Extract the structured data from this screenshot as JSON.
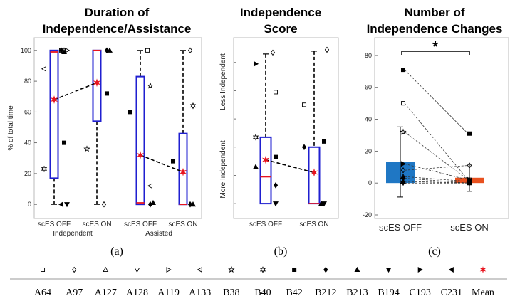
{
  "panels": {
    "a": {
      "title_line1": "Duration of",
      "title_line2": "Independence/Assistance",
      "ylabel": "% of total time",
      "caption": "(a)",
      "group_labels": [
        "Independent",
        "Assisted"
      ]
    },
    "b": {
      "title_line1": "Independence",
      "title_line2": "Score",
      "ylabel_top": "Less Independent",
      "ylabel_bottom": "More Independent",
      "caption": "(b)"
    },
    "c": {
      "title_line1": "Number of",
      "title_line2": "Independence Changes",
      "significance": "*",
      "caption": "(c)"
    }
  },
  "legend": {
    "items": [
      {
        "label": "A64",
        "marker": "square-open"
      },
      {
        "label": "A97",
        "marker": "diamond-open"
      },
      {
        "label": "A127",
        "marker": "triangle-up-open"
      },
      {
        "label": "A128",
        "marker": "triangle-down-open"
      },
      {
        "label": "A119",
        "marker": "triangle-right-open"
      },
      {
        "label": "A133",
        "marker": "triangle-left-open"
      },
      {
        "label": "B38",
        "marker": "pentagram-open"
      },
      {
        "label": "B40",
        "marker": "hexagram-open"
      },
      {
        "label": "B42",
        "marker": "square-filled"
      },
      {
        "label": "B212",
        "marker": "diamond-filled"
      },
      {
        "label": "B213",
        "marker": "triangle-up-filled"
      },
      {
        "label": "B194",
        "marker": "triangle-down-filled"
      },
      {
        "label": "C193",
        "marker": "triangle-right-filled"
      },
      {
        "label": "C231",
        "marker": "triangle-left-filled"
      },
      {
        "label": "Mean",
        "marker": "asterisk-red"
      }
    ]
  },
  "colors": {
    "box": "#1f1fd0",
    "median": "#e8141e",
    "mean": "#e8141e",
    "bar_off": "#1f77c4",
    "bar_on": "#e8511f"
  },
  "chart_data": [
    {
      "type": "box",
      "title": "Duration of Independence/Assistance",
      "ylabel": "% of total time",
      "ylim": [
        -5,
        105
      ],
      "yticks": [
        0,
        20,
        40,
        60,
        80,
        100
      ],
      "categories": [
        "scES OFF",
        "scES ON",
        "scES OFF",
        "scES ON"
      ],
      "groups": [
        "Independent",
        "Independent",
        "Assisted",
        "Assisted"
      ],
      "boxes": [
        {
          "q1": 17,
          "median": 99,
          "q3": 100,
          "whisker_low": 0,
          "whisker_high": 100,
          "mean": 68
        },
        {
          "q1": 54,
          "median": 100,
          "q3": 100,
          "whisker_low": 0,
          "whisker_high": 100,
          "mean": 79
        },
        {
          "q1": 0,
          "median": 1,
          "q3": 83,
          "whisker_low": 0,
          "whisker_high": 100,
          "mean": 32
        },
        {
          "q1": 0,
          "median": 0,
          "q3": 46,
          "whisker_low": 0,
          "whisker_high": 100,
          "mean": 21
        }
      ],
      "points": [
        {
          "box": 0,
          "subject": "A64",
          "value": 100
        },
        {
          "box": 0,
          "subject": "A97",
          "value": 100
        },
        {
          "box": 0,
          "subject": "A119",
          "value": 100
        },
        {
          "box": 0,
          "subject": "A133",
          "value": 88
        },
        {
          "box": 0,
          "subject": "B42",
          "value": 40
        },
        {
          "box": 0,
          "subject": "B40",
          "value": 23
        },
        {
          "box": 0,
          "subject": "B212",
          "value": 100
        },
        {
          "box": 0,
          "subject": "B213",
          "value": 99
        },
        {
          "box": 0,
          "subject": "B194",
          "value": 0
        },
        {
          "box": 0,
          "subject": "C231",
          "value": 0
        },
        {
          "box": 1,
          "subject": "B42",
          "value": 72
        },
        {
          "box": 1,
          "subject": "B38",
          "value": 36
        },
        {
          "box": 1,
          "subject": "A97",
          "value": 0
        },
        {
          "box": 1,
          "subject": "B212",
          "value": 100
        },
        {
          "box": 1,
          "subject": "B213",
          "value": 100
        },
        {
          "box": 2,
          "subject": "A64",
          "value": 100
        },
        {
          "box": 2,
          "subject": "B38",
          "value": 77
        },
        {
          "box": 2,
          "subject": "B42",
          "value": 60
        },
        {
          "box": 2,
          "subject": "A133",
          "value": 12
        },
        {
          "box": 2,
          "subject": "B212",
          "value": 0
        },
        {
          "box": 2,
          "subject": "B213",
          "value": 1
        },
        {
          "box": 3,
          "subject": "A97",
          "value": 100
        },
        {
          "box": 3,
          "subject": "B40",
          "value": 64
        },
        {
          "box": 3,
          "subject": "B42",
          "value": 28
        },
        {
          "box": 3,
          "subject": "B212",
          "value": 0
        },
        {
          "box": 3,
          "subject": "B213",
          "value": 0
        }
      ]
    },
    {
      "type": "box",
      "title": "Independence Score",
      "ylim": [
        -0.3,
        5.7
      ],
      "yticks": [
        0,
        1,
        2,
        3,
        4,
        5
      ],
      "categories": [
        "scES OFF",
        "scES ON"
      ],
      "boxes": [
        {
          "q1": 0,
          "median": 0.95,
          "q3": 2.35,
          "whisker_low": 0,
          "whisker_high": 5.3,
          "mean": 1.55
        },
        {
          "q1": 0,
          "median": 0,
          "q3": 2.0,
          "whisker_low": 0,
          "whisker_high": 5.4,
          "mean": 1.1
        }
      ],
      "points": [
        {
          "box": 0,
          "subject": "A97",
          "value": 5.35
        },
        {
          "box": 0,
          "subject": "C193",
          "value": 4.95
        },
        {
          "box": 0,
          "subject": "A64",
          "value": 3.95
        },
        {
          "box": 0,
          "subject": "B40",
          "value": 2.35
        },
        {
          "box": 0,
          "subject": "B42",
          "value": 1.65
        },
        {
          "box": 0,
          "subject": "B213",
          "value": 1.3
        },
        {
          "box": 0,
          "subject": "B212",
          "value": 0.65
        },
        {
          "box": 0,
          "subject": "B194",
          "value": 0
        },
        {
          "box": 1,
          "subject": "A97",
          "value": 5.45
        },
        {
          "box": 1,
          "subject": "A64",
          "value": 3.5
        },
        {
          "box": 1,
          "subject": "B42",
          "value": 2.2
        },
        {
          "box": 1,
          "subject": "B212",
          "value": 2.0
        },
        {
          "box": 1,
          "subject": "B213",
          "value": 0
        },
        {
          "box": 1,
          "subject": "B194",
          "value": 0
        }
      ]
    },
    {
      "type": "bar",
      "title": "Number of Independence Changes",
      "ylim": [
        -20,
        88
      ],
      "yticks": [
        -20,
        0,
        20,
        40,
        60,
        80
      ],
      "categories": [
        "scES OFF",
        "scES ON"
      ],
      "values": [
        13.2,
        3.3
      ],
      "errors": [
        22,
        8.5
      ],
      "pairs": [
        {
          "subject": "B42",
          "off": 71,
          "on": 31
        },
        {
          "subject": "A64",
          "off": 50,
          "on": 2
        },
        {
          "subject": "B38",
          "off": 32,
          "on": 2
        },
        {
          "subject": "A97",
          "off": 8,
          "on": 11
        },
        {
          "subject": "C193",
          "off": 12,
          "on": 2
        },
        {
          "subject": "A127",
          "off": 4,
          "on": 1
        },
        {
          "subject": "B212",
          "off": 3,
          "on": 0
        },
        {
          "subject": "B213",
          "off": 1,
          "on": 0
        },
        {
          "subject": "B194",
          "off": 0,
          "on": 0
        }
      ]
    }
  ]
}
